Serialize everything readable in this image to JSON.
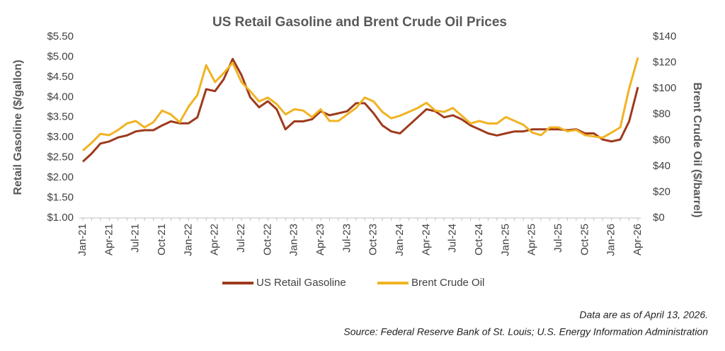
{
  "chart_data": {
    "type": "line",
    "title": "US Retail Gasoline and Brent Crude Oil Prices",
    "ylabel": "Retail Gasoline ($/gallon)",
    "y2label": "Brent Crude Oil ($/barrel)",
    "categories": [
      "Jan-21",
      null,
      null,
      "Apr-21",
      null,
      null,
      "Jul-21",
      null,
      null,
      "Oct-21",
      null,
      null,
      "Jan-22",
      null,
      null,
      "Apr-22",
      null,
      null,
      "Jul-22",
      null,
      null,
      "Oct-22",
      null,
      null,
      "Jan-23",
      null,
      null,
      "Apr-23",
      null,
      null,
      "Jul-23",
      null,
      null,
      "Oct-23",
      null,
      null,
      "Jan-24",
      null,
      null,
      "Apr-24",
      null,
      null,
      "Jul-24",
      null,
      null,
      "Oct-24",
      null,
      null,
      "Jan-25",
      null,
      null,
      "Apr-25",
      null,
      null,
      "Jul-25",
      null,
      null,
      "Oct-25",
      null,
      null,
      "Jan-26",
      null,
      null,
      "Apr-26"
    ],
    "series": [
      {
        "name": "US Retail Gasoline",
        "color": "#9e3a1c",
        "axis": "y",
        "values": [
          2.4,
          2.6,
          2.85,
          2.9,
          3.0,
          3.05,
          3.15,
          3.18,
          3.18,
          3.3,
          3.4,
          3.35,
          3.35,
          3.5,
          4.2,
          4.15,
          4.45,
          4.95,
          4.55,
          4.0,
          3.75,
          3.9,
          3.7,
          3.2,
          3.4,
          3.4,
          3.45,
          3.65,
          3.55,
          3.6,
          3.65,
          3.85,
          3.85,
          3.6,
          3.3,
          3.15,
          3.1,
          3.3,
          3.5,
          3.7,
          3.65,
          3.5,
          3.55,
          3.45,
          3.3,
          3.2,
          3.1,
          3.05,
          3.1,
          3.15,
          3.15,
          3.2,
          3.2,
          3.2,
          3.2,
          3.18,
          3.2,
          3.1,
          3.1,
          2.95,
          2.9,
          2.95,
          3.4,
          4.25
        ]
      },
      {
        "name": "Brent Crude Oil",
        "color": "#f0b323",
        "axis": "y2",
        "values": [
          52,
          58,
          65,
          64,
          68,
          73,
          75,
          70,
          74,
          83,
          80,
          74,
          86,
          95,
          118,
          105,
          112,
          120,
          105,
          98,
          90,
          93,
          88,
          80,
          84,
          83,
          78,
          84,
          75,
          75,
          80,
          85,
          93,
          90,
          82,
          77,
          79,
          82,
          85,
          89,
          83,
          82,
          85,
          79,
          73,
          75,
          73,
          73,
          78,
          75,
          72,
          66,
          64,
          70,
          70,
          67,
          68,
          64,
          63,
          62,
          66,
          70,
          100,
          124
        ]
      }
    ],
    "ylim": [
      1.0,
      5.5
    ],
    "yticks": [
      {
        "value": 1.0,
        "label": "$1.00"
      },
      {
        "value": 1.5,
        "label": "$1.50"
      },
      {
        "value": 2.0,
        "label": "$2.00"
      },
      {
        "value": 2.5,
        "label": "$2.50"
      },
      {
        "value": 3.0,
        "label": "$3.00"
      },
      {
        "value": 3.5,
        "label": "$3.50"
      },
      {
        "value": 4.0,
        "label": "$4.00"
      },
      {
        "value": 4.5,
        "label": "$4.50"
      },
      {
        "value": 5.0,
        "label": "$5.00"
      },
      {
        "value": 5.5,
        "label": "$5.50"
      }
    ],
    "y2lim": [
      0,
      140
    ],
    "y2ticks": [
      {
        "value": 0,
        "label": "$0"
      },
      {
        "value": 20,
        "label": "$20"
      },
      {
        "value": 40,
        "label": "$40"
      },
      {
        "value": 60,
        "label": "$60"
      },
      {
        "value": 80,
        "label": "$80"
      },
      {
        "value": 100,
        "label": "$100"
      },
      {
        "value": 120,
        "label": "$120"
      },
      {
        "value": 140,
        "label": "$140"
      }
    ],
    "grid": false,
    "legend": "bottom",
    "notes": [
      "Data are as of April 13, 2026.",
      "Source: Federal Reserve Bank of St. Louis; U.S. Energy Information Administration"
    ]
  }
}
